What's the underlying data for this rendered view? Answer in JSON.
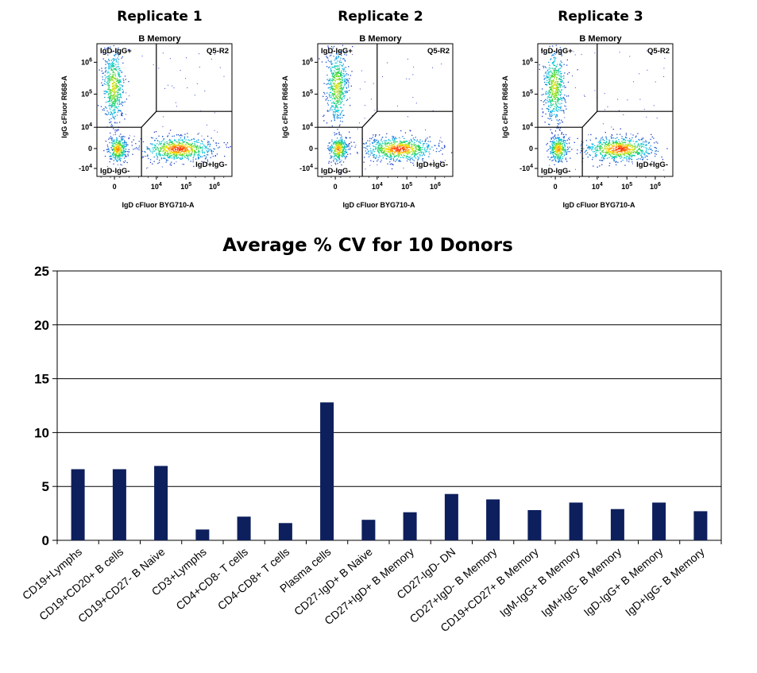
{
  "flow_panels": [
    {
      "title": "Replicate 1",
      "subtitle": "B Memory",
      "gates": {
        "tl": "IgD-IgG+",
        "tr": "Q5-R2",
        "bl": "IgD-IgG-",
        "br": "IgD+IgG-"
      },
      "xlabel": "IgD cFluor BYG710-A",
      "ylabel": "IgG cFluor R668-A"
    },
    {
      "title": "Replicate 2",
      "subtitle": "B Memory",
      "gates": {
        "tl": "IgD-IgG+",
        "tr": "Q5-R2",
        "bl": "IgD-IgG-",
        "br": "IgD+IgG-"
      },
      "xlabel": "IgD cFluor BYG710-A",
      "ylabel": "IgG cFluor R668-A"
    },
    {
      "title": "Replicate 3",
      "subtitle": "B Memory",
      "gates": {
        "tl": "IgD-IgG+",
        "tr": "Q5-R2",
        "bl": "IgD-IgG-",
        "br": "IgD+IgG-"
      },
      "xlabel": "IgD cFluor BYG710-A",
      "ylabel": "IgG cFluor R668-A"
    }
  ],
  "flow_axis_ticks": {
    "y": [
      {
        "base": "10",
        "exp": "6"
      },
      {
        "base": "10",
        "exp": "5"
      },
      {
        "base": "10",
        "exp": "4"
      },
      {
        "base": "0",
        "exp": ""
      },
      {
        "base": "-10",
        "exp": "4"
      }
    ],
    "x": [
      {
        "base": "0",
        "exp": ""
      },
      {
        "base": "10",
        "exp": "4"
      },
      {
        "base": "10",
        "exp": "5"
      },
      {
        "base": "10",
        "exp": "6"
      }
    ]
  },
  "colors": {
    "bar": "#0d1f5c",
    "density_low": "#3344cc",
    "density_high": "#ff1a00"
  },
  "chart_data": [
    {
      "type": "bar",
      "title": "Average  % CV for 10 Donors",
      "xlabel": "",
      "ylabel": "",
      "ylim": [
        0,
        25
      ],
      "yticks": [
        0,
        5,
        10,
        15,
        20,
        25
      ],
      "grid": true,
      "categories": [
        "CD19+Lymphs",
        "CD19+CD20+ B cells",
        "CD19+CD27- B Naive",
        "CD3+Lymphs",
        "CD4+CD8- T cells",
        "CD4-CD8+ T cells",
        "Plasma cells",
        "CD27-IgD+ B Naive",
        "CD27+IgD+ B Memory",
        "CD27-IgD- DN",
        "CD27+IgD- B Memory",
        "CD19+CD27+ B Memory",
        "IgM-IgG+ B Memory",
        "IgM+IgG- B Memory",
        "IgD-IgG+ B Memory",
        "IgD+IgG- B Memory"
      ],
      "values": [
        6.6,
        6.6,
        6.9,
        1.0,
        2.2,
        1.6,
        12.8,
        1.9,
        2.6,
        4.3,
        3.8,
        2.8,
        3.5,
        2.9,
        3.5,
        2.7
      ]
    }
  ]
}
